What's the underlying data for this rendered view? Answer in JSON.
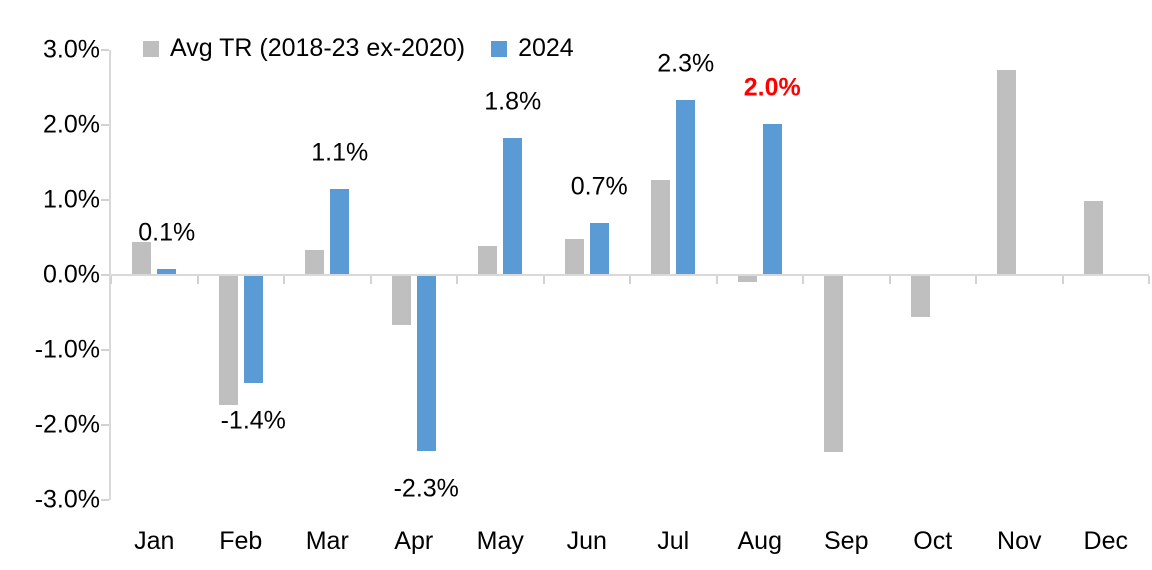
{
  "chart_data": {
    "type": "bar",
    "title": "",
    "categories": [
      "Jan",
      "Feb",
      "Mar",
      "Apr",
      "May",
      "Jun",
      "Jul",
      "Aug",
      "Sep",
      "Oct",
      "Nov",
      "Dec"
    ],
    "series": [
      {
        "name": "Avg TR (2018-23 ex-2020)",
        "color": "#bfbfbf",
        "values": [
          0.43,
          -1.72,
          0.32,
          -0.65,
          0.37,
          0.47,
          1.25,
          -0.08,
          -2.35,
          -0.55,
          2.72,
          0.97
        ]
      },
      {
        "name": "2024",
        "color": "#5b9bd5",
        "values": [
          0.07,
          -1.42,
          1.13,
          -2.33,
          1.82,
          0.68,
          2.32,
          2.0,
          null,
          null,
          null,
          null
        ]
      }
    ],
    "data_labels": [
      {
        "text": "0.1%",
        "color": "#000000",
        "bold": false
      },
      {
        "text": "-1.4%",
        "color": "#000000",
        "bold": false
      },
      {
        "text": "1.1%",
        "color": "#000000",
        "bold": false
      },
      {
        "text": "-2.3%",
        "color": "#000000",
        "bold": false
      },
      {
        "text": "1.8%",
        "color": "#000000",
        "bold": false
      },
      {
        "text": "0.7%",
        "color": "#000000",
        "bold": false
      },
      {
        "text": "2.3%",
        "color": "#000000",
        "bold": false
      },
      {
        "text": "2.0%",
        "color": "#ff0000",
        "bold": true
      },
      null,
      null,
      null,
      null
    ],
    "y_axis": {
      "tick_labels": [
        "3.0%",
        "2.0%",
        "1.0%",
        "0.0%",
        "-1.0%",
        "-2.0%",
        "-3.0%"
      ],
      "tick_values": [
        3,
        2,
        1,
        0,
        -1,
        -2,
        -3
      ],
      "min": -3,
      "max": 3,
      "step": 1
    },
    "axis_color": "#d9d9d9",
    "text_color": "#000000",
    "highlight_color": "#ff0000",
    "legend_position": "top",
    "grid": false,
    "xlabel": "",
    "ylabel": ""
  }
}
